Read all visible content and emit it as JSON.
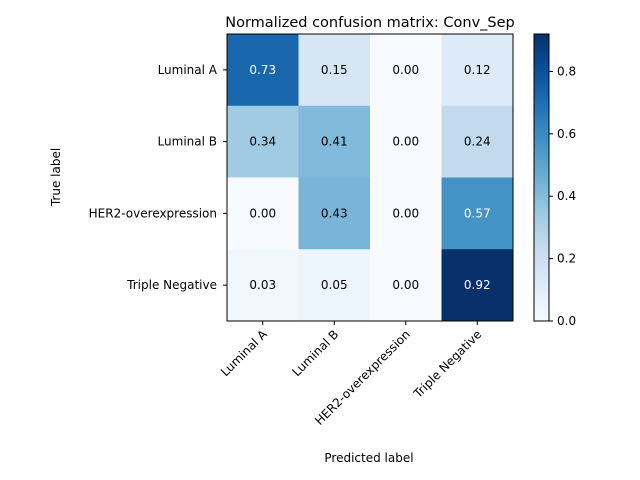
{
  "chart_data": {
    "type": "heatmap",
    "title": "Normalized confusion matrix: Conv_Sep",
    "xlabel": "Predicted label",
    "ylabel": "True label",
    "x_categories": [
      "Luminal A",
      "Luminal B",
      "HER2-overexpression",
      "Triple Negative"
    ],
    "y_categories": [
      "Luminal A",
      "Luminal B",
      "HER2-overexpression",
      "Triple Negative"
    ],
    "values": [
      [
        0.73,
        0.15,
        0.0,
        0.12
      ],
      [
        0.34,
        0.41,
        0.0,
        0.24
      ],
      [
        0.0,
        0.43,
        0.0,
        0.57
      ],
      [
        0.03,
        0.05,
        0.0,
        0.92
      ]
    ],
    "value_labels": [
      [
        "0.73",
        "0.15",
        "0.00",
        "0.12"
      ],
      [
        "0.34",
        "0.41",
        "0.00",
        "0.24"
      ],
      [
        "0.00",
        "0.43",
        "0.00",
        "0.57"
      ],
      [
        "0.03",
        "0.05",
        "0.00",
        "0.92"
      ]
    ],
    "colormap": "Blues",
    "vmin": 0.0,
    "vmax": 0.92,
    "colorbar_ticks": [
      0.0,
      0.2,
      0.4,
      0.6,
      0.8
    ],
    "colorbar_tick_labels": [
      "0.0",
      "0.2",
      "0.4",
      "0.6",
      "0.8"
    ],
    "text_threshold": 0.46,
    "grid": false
  }
}
